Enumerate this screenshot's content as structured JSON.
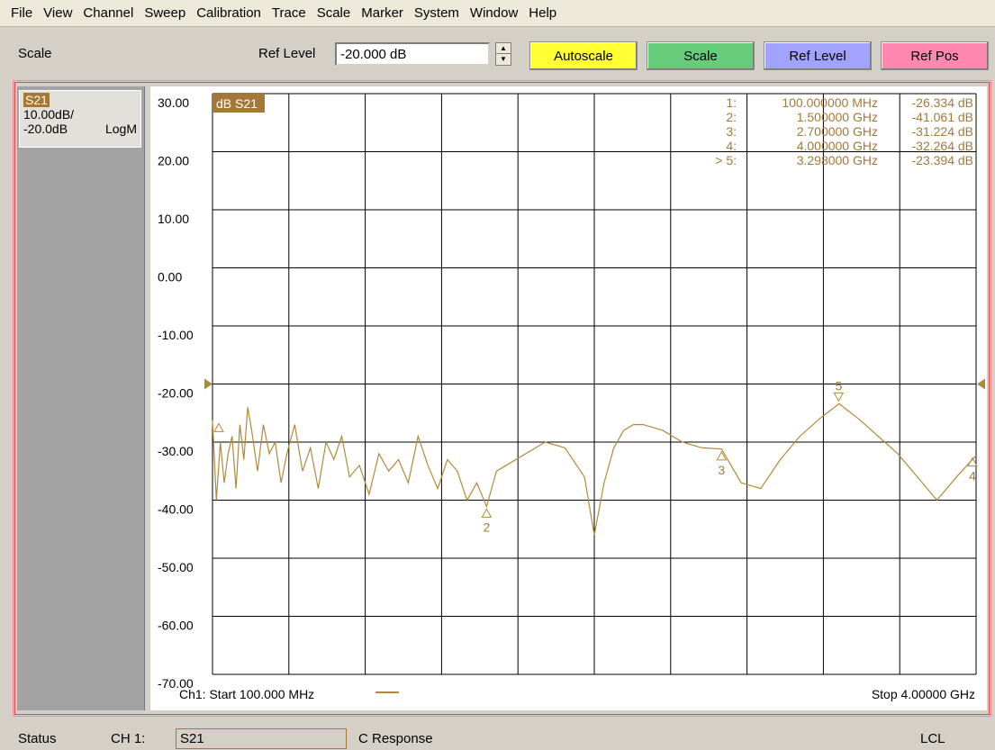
{
  "menu": [
    "File",
    "View",
    "Channel",
    "Sweep",
    "Calibration",
    "Trace",
    "Scale",
    "Marker",
    "System",
    "Window",
    "Help"
  ],
  "toolbar": {
    "title": "Scale",
    "ref_level_label": "Ref Level",
    "ref_level_value": "-20.000 dB",
    "spinner_up": "▲",
    "spinner_down": "▼",
    "buttons": {
      "autoscale": "Autoscale",
      "scale": "Scale",
      "ref_level": "Ref Level",
      "ref_pos": "Ref Pos"
    },
    "colors": {
      "autoscale": "#ffff33",
      "scale": "#66cc7a",
      "ref_level": "#a2a2ff",
      "ref_pos": "#ff88b0"
    }
  },
  "trace_info": {
    "name": "S21",
    "scale_per_div": "10.00dB/",
    "ref": "-20.0dB",
    "format": "LogM"
  },
  "plot": {
    "trace_label": "dB S21",
    "y_tick_labels": [
      "30.00",
      "20.00",
      "10.00",
      "0.00",
      "-10.00",
      "-20.00",
      "-30.00",
      "-40.00",
      "-50.00",
      "-60.00",
      "-70.00"
    ],
    "start_label": "Ch1: Start  100.000 MHz",
    "stop_label": "Stop  4.00000 GHz",
    "markers_table": [
      {
        "id": "1:",
        "freq": "100.000000 MHz",
        "value": "-26.334 dB"
      },
      {
        "id": "2:",
        "freq": "1.500000 GHz",
        "value": "-41.061 dB"
      },
      {
        "id": "3:",
        "freq": "2.700000 GHz",
        "value": "-31.224 dB"
      },
      {
        "id": "4:",
        "freq": "4.000000 GHz",
        "value": "-32.264 dB"
      },
      {
        "id": "> 5:",
        "freq": "3.298000 GHz",
        "value": "-23.394 dB"
      }
    ],
    "trace_color": "#b08a3a",
    "grid_color": "#000000"
  },
  "chart_data": {
    "type": "line",
    "xlabel": "",
    "ylabel": "",
    "xlim": [
      0.1,
      4.0
    ],
    "ylim": [
      -70,
      30
    ],
    "grid": true,
    "series": [
      {
        "name": "S21",
        "x": [
          0.1,
          0.12,
          0.14,
          0.16,
          0.18,
          0.2,
          0.22,
          0.24,
          0.26,
          0.28,
          0.3,
          0.33,
          0.36,
          0.39,
          0.42,
          0.45,
          0.48,
          0.52,
          0.56,
          0.6,
          0.64,
          0.68,
          0.72,
          0.76,
          0.8,
          0.85,
          0.9,
          0.95,
          1.0,
          1.05,
          1.1,
          1.15,
          1.2,
          1.25,
          1.3,
          1.35,
          1.4,
          1.45,
          1.5,
          1.55,
          1.6,
          1.7,
          1.8,
          1.9,
          2.0,
          2.05,
          2.1,
          2.15,
          2.2,
          2.25,
          2.3,
          2.4,
          2.5,
          2.6,
          2.7,
          2.8,
          2.9,
          3.0,
          3.1,
          3.2,
          3.3,
          3.4,
          3.5,
          3.6,
          3.7,
          3.8,
          3.9,
          4.0
        ],
        "y": [
          -26.3,
          -40,
          -30,
          -37,
          -32,
          -29,
          -38,
          -27,
          -33,
          -24,
          -28,
          -35,
          -27,
          -32,
          -30,
          -37,
          -32,
          -27,
          -35,
          -31,
          -38,
          -30,
          -33,
          -29,
          -36,
          -34,
          -39,
          -32,
          -35,
          -33,
          -37,
          -29,
          -34,
          -38,
          -33,
          -35,
          -40,
          -37,
          -41.1,
          -35,
          -34,
          -32,
          -30,
          -31,
          -36,
          -46,
          -37,
          -31,
          -28,
          -27,
          -27,
          -28,
          -30,
          -31,
          -31.2,
          -37,
          -38,
          -33,
          -29,
          -26,
          -23.4,
          -26,
          -29,
          -32,
          -36,
          -40,
          -36,
          -32.3
        ]
      }
    ],
    "markers": [
      {
        "label": "1",
        "x": 0.1,
        "y": -26.334
      },
      {
        "label": "2",
        "x": 1.5,
        "y": -41.061
      },
      {
        "label": "3",
        "x": 2.7,
        "y": -31.224
      },
      {
        "label": "4",
        "x": 4.0,
        "y": -32.264
      },
      {
        "label": "5",
        "x": 3.298,
        "y": -23.394
      }
    ],
    "ref_level": -20
  },
  "status": {
    "label": "Status",
    "channel": "CH 1:",
    "param": "S21",
    "mode": "C  Response",
    "remote": "LCL"
  }
}
